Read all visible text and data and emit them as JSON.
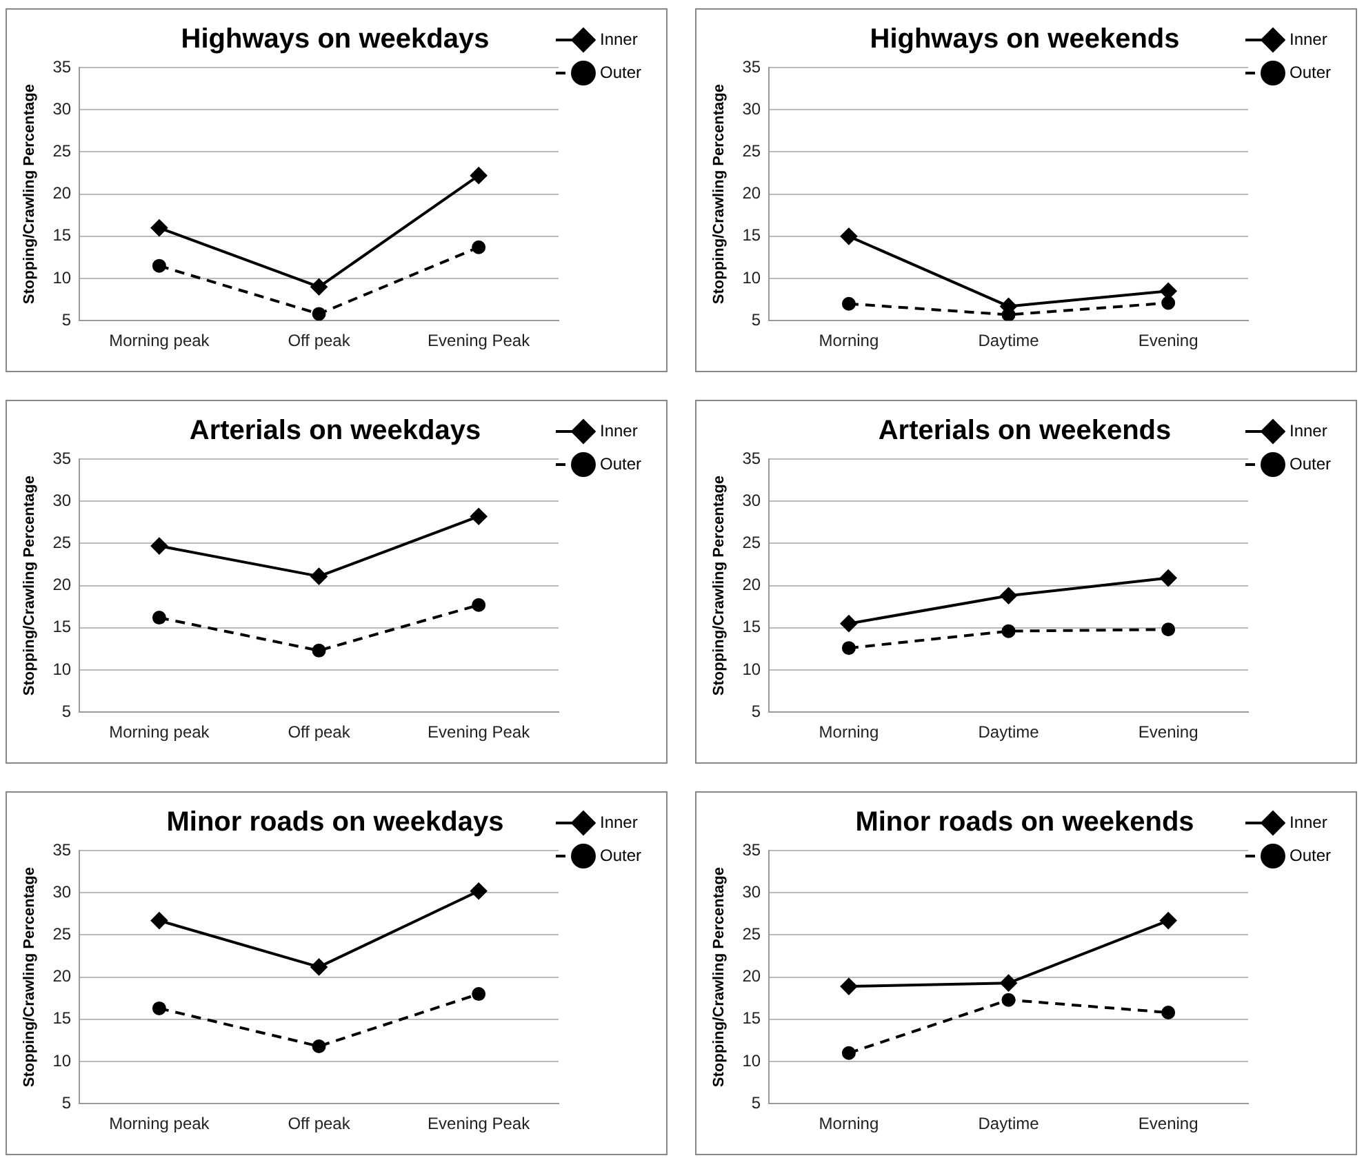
{
  "chart_data": [
    {
      "type": "line",
      "title": "Highways on weekdays",
      "ylabel": "Stopping/Crawling Percentage",
      "categories": [
        "Morning peak",
        "Off peak",
        "Evening Peak"
      ],
      "ylim": [
        5,
        35
      ],
      "yticks": [
        5,
        10,
        15,
        20,
        25,
        30,
        35
      ],
      "grid": "y",
      "legend": "top right",
      "series": [
        {
          "name": "Inner",
          "color": "#000000",
          "marker": "diamond",
          "line_style": "solid",
          "values": [
            16,
            9,
            22.2
          ]
        },
        {
          "name": "Outer",
          "color": "#000000",
          "marker": "circle",
          "line_style": "dashed",
          "values": [
            11.5,
            5.8,
            13.7
          ]
        }
      ]
    },
    {
      "type": "line",
      "title": "Highways on weekends",
      "ylabel": "Stopping/Crawling Percentage",
      "categories": [
        "Morning",
        "Daytime",
        "Evening"
      ],
      "ylim": [
        5,
        35
      ],
      "yticks": [
        5,
        10,
        15,
        20,
        25,
        30,
        35
      ],
      "grid": "y",
      "legend": "top right",
      "series": [
        {
          "name": "Inner",
          "color": "#000000",
          "marker": "diamond",
          "line_style": "solid",
          "values": [
            15,
            6.7,
            8.5
          ]
        },
        {
          "name": "Outer",
          "color": "#000000",
          "marker": "circle",
          "line_style": "dashed",
          "values": [
            7,
            5.7,
            7.1
          ]
        }
      ]
    },
    {
      "type": "line",
      "title": "Arterials on weekdays",
      "ylabel": "Stopping/Crawling Percentage",
      "categories": [
        "Morning peak",
        "Off peak",
        "Evening Peak"
      ],
      "ylim": [
        5,
        35
      ],
      "yticks": [
        5,
        10,
        15,
        20,
        25,
        30,
        35
      ],
      "grid": "y",
      "legend": "top right",
      "series": [
        {
          "name": "Inner",
          "color": "#000000",
          "marker": "diamond",
          "line_style": "solid",
          "values": [
            24.7,
            21.1,
            28.2
          ]
        },
        {
          "name": "Outer",
          "color": "#000000",
          "marker": "circle",
          "line_style": "dashed",
          "values": [
            16.2,
            12.3,
            17.7
          ]
        }
      ]
    },
    {
      "type": "line",
      "title": "Arterials on weekends",
      "ylabel": "Stopping/Crawling Percentage",
      "categories": [
        "Morning",
        "Daytime",
        "Evening"
      ],
      "ylim": [
        5,
        35
      ],
      "yticks": [
        5,
        10,
        15,
        20,
        25,
        30,
        35
      ],
      "grid": "y",
      "legend": "top right",
      "series": [
        {
          "name": "Inner",
          "color": "#000000",
          "marker": "diamond",
          "line_style": "solid",
          "values": [
            15.5,
            18.8,
            20.9
          ]
        },
        {
          "name": "Outer",
          "color": "#000000",
          "marker": "circle",
          "line_style": "dashed",
          "values": [
            12.6,
            14.6,
            14.8
          ]
        }
      ]
    },
    {
      "type": "line",
      "title": "Minor roads on weekdays",
      "ylabel": "Stopping/Crawling Percentage",
      "categories": [
        "Morning peak",
        "Off peak",
        "Evening Peak"
      ],
      "ylim": [
        5,
        35
      ],
      "yticks": [
        5,
        10,
        15,
        20,
        25,
        30,
        35
      ],
      "grid": "y",
      "legend": "top right",
      "series": [
        {
          "name": "Inner",
          "color": "#000000",
          "marker": "diamond",
          "line_style": "solid",
          "values": [
            26.7,
            21.2,
            30.2
          ]
        },
        {
          "name": "Outer",
          "color": "#000000",
          "marker": "circle",
          "line_style": "dashed",
          "values": [
            16.3,
            11.8,
            18
          ]
        }
      ]
    },
    {
      "type": "line",
      "title": "Minor roads on weekends",
      "ylabel": "Stopping/Crawling Percentage",
      "categories": [
        "Morning",
        "Daytime",
        "Evening"
      ],
      "ylim": [
        5,
        35
      ],
      "yticks": [
        5,
        10,
        15,
        20,
        25,
        30,
        35
      ],
      "grid": "y",
      "legend": "top right",
      "series": [
        {
          "name": "Inner",
          "color": "#000000",
          "marker": "diamond",
          "line_style": "solid",
          "values": [
            18.9,
            19.3,
            26.7
          ]
        },
        {
          "name": "Outer",
          "color": "#000000",
          "marker": "circle",
          "line_style": "dashed",
          "values": [
            11,
            17.3,
            15.8
          ]
        }
      ]
    }
  ]
}
